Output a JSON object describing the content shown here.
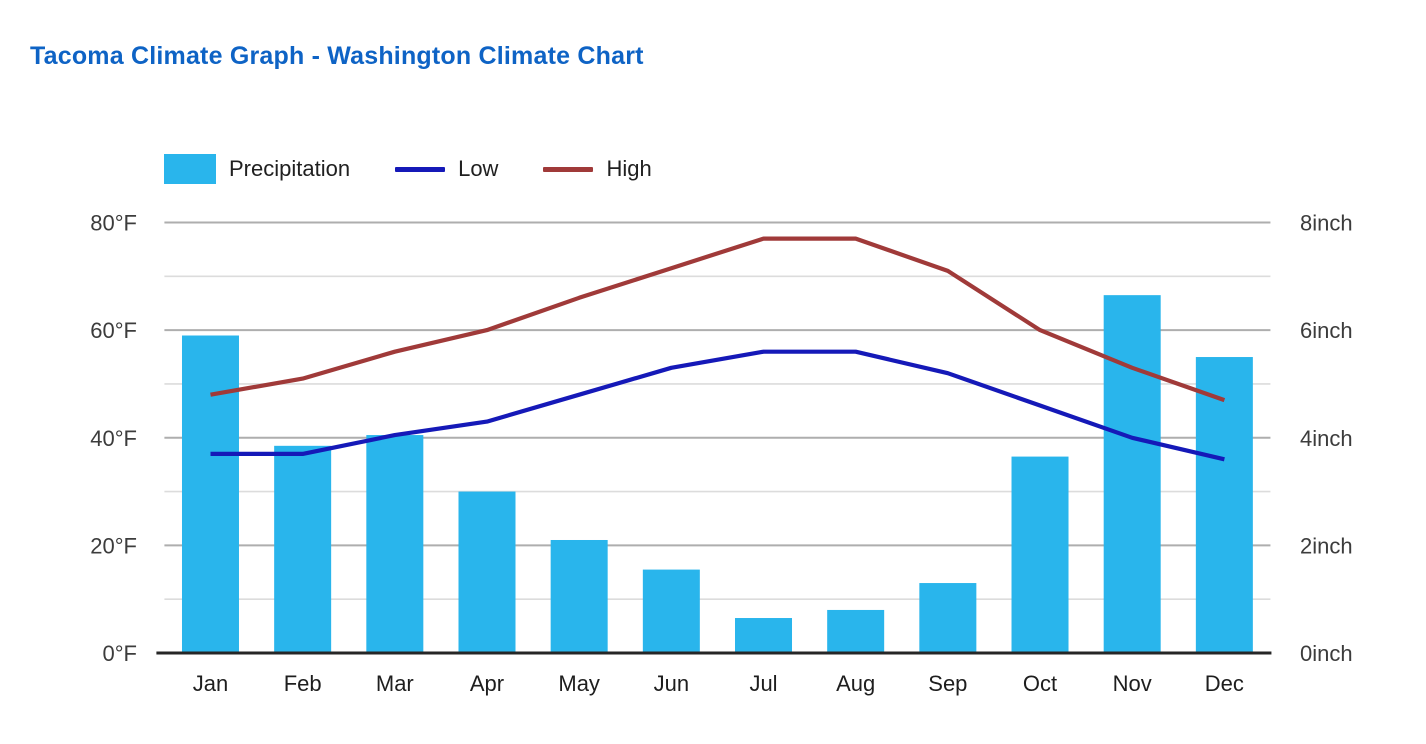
{
  "page": {
    "title": "Tacoma Climate Graph - Washington Climate Chart"
  },
  "legend": {
    "precipitation": "Precipitation",
    "low": "Low",
    "high": "High"
  },
  "colors": {
    "title": "#0e63c5",
    "precipitation": "#29b5ec",
    "low": "#1519b8",
    "high": "#a03a39",
    "grid_major": "#aeaeae",
    "grid_minor": "#dcdcdc",
    "axis_line": "#262626",
    "axis_text": "#3c3c3c",
    "month_text": "#1e1e1e"
  },
  "chart_data": {
    "type": "bar+line combo",
    "title": "Tacoma Climate Graph - Washington Climate Chart",
    "categories": [
      "Jan",
      "Feb",
      "Mar",
      "Apr",
      "May",
      "Jun",
      "Jul",
      "Aug",
      "Sep",
      "Oct",
      "Nov",
      "Dec"
    ],
    "series": [
      {
        "name": "Precipitation",
        "type": "bar",
        "axis": "right",
        "unit": "inch",
        "values": [
          5.9,
          3.85,
          4.05,
          3.0,
          2.1,
          1.55,
          0.65,
          0.8,
          1.3,
          3.65,
          6.65,
          5.5
        ]
      },
      {
        "name": "Low",
        "type": "line",
        "axis": "left",
        "unit": "°F",
        "values": [
          37,
          37,
          40.5,
          43,
          48,
          53,
          56,
          56,
          52,
          46,
          40,
          36
        ]
      },
      {
        "name": "High",
        "type": "line",
        "axis": "left",
        "unit": "°F",
        "values": [
          48,
          51,
          56,
          60,
          66,
          71.5,
          77,
          77,
          71,
          60,
          53,
          47
        ]
      }
    ],
    "left_axis": {
      "unit": "°F",
      "min": 0,
      "max": 80,
      "tick_step": 20,
      "minor_grid_step": 10,
      "tick_labels": [
        "0°F",
        "20°F",
        "40°F",
        "60°F",
        "80°F"
      ]
    },
    "right_axis": {
      "unit": "inch",
      "min": 0,
      "max": 8,
      "tick_step": 2,
      "tick_labels": [
        "0inch",
        "2inch",
        "4inch",
        "6inch",
        "8inch"
      ]
    },
    "grid": true,
    "legend_position": "top"
  }
}
